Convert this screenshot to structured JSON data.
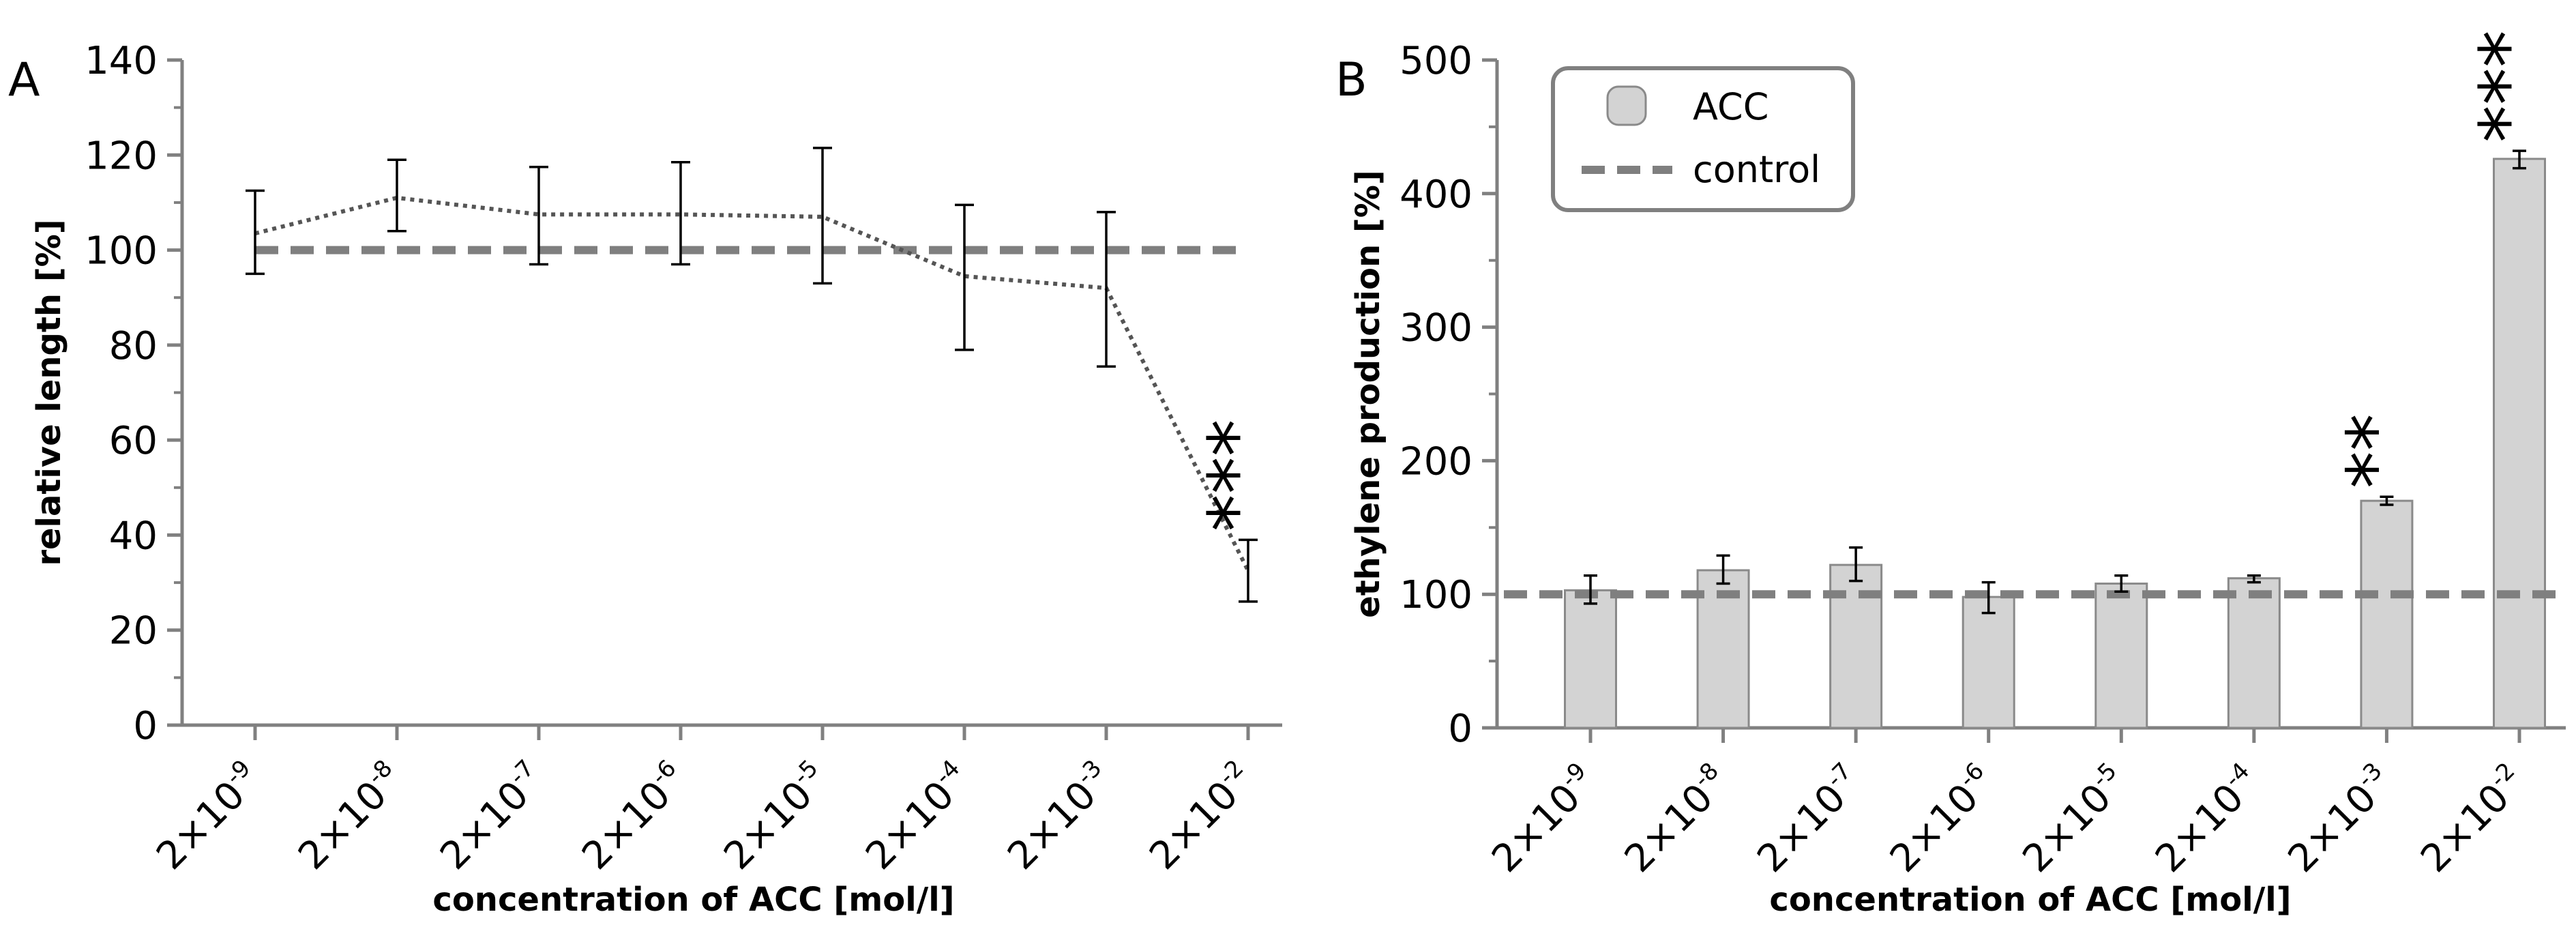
{
  "chart_data": [
    {
      "panel": "A",
      "type": "line",
      "xlabel": "concentration of ACC [mol/l]",
      "ylabel": "relative length [%]",
      "ylim": [
        0,
        140
      ],
      "y_ticks": [
        0,
        20,
        40,
        60,
        80,
        100,
        120,
        140
      ],
      "categories": [
        {
          "base": "2×10",
          "exp": "-9"
        },
        {
          "base": "2×10",
          "exp": "-8"
        },
        {
          "base": "2×10",
          "exp": "-7"
        },
        {
          "base": "2×10",
          "exp": "-6"
        },
        {
          "base": "2×10",
          "exp": "-5"
        },
        {
          "base": "2×10",
          "exp": "-4"
        },
        {
          "base": "2×10",
          "exp": "-3"
        },
        {
          "base": "2×10",
          "exp": "-2"
        }
      ],
      "series": [
        {
          "name": "ACC",
          "values": [
            103.5,
            111,
            107.5,
            107.5,
            107,
            94.5,
            92,
            32.5
          ],
          "err_low": [
            95,
            104,
            97,
            97,
            93,
            79,
            75.5,
            26
          ],
          "err_high": [
            112.5,
            119,
            117.5,
            118.5,
            121.5,
            109.5,
            108,
            39
          ]
        }
      ],
      "control": {
        "name": "control",
        "value": 100
      },
      "annotations": [
        {
          "category_index": 7,
          "text": "***"
        }
      ]
    },
    {
      "panel": "B",
      "type": "bar",
      "xlabel": "concentration of ACC [mol/l]",
      "ylabel": "ethylene production [%]",
      "ylim": [
        0,
        500
      ],
      "y_ticks": [
        0,
        100,
        200,
        300,
        400,
        500
      ],
      "categories": [
        {
          "base": "2×10",
          "exp": "-9"
        },
        {
          "base": "2×10",
          "exp": "-8"
        },
        {
          "base": "2×10",
          "exp": "-7"
        },
        {
          "base": "2×10",
          "exp": "-6"
        },
        {
          "base": "2×10",
          "exp": "-5"
        },
        {
          "base": "2×10",
          "exp": "-4"
        },
        {
          "base": "2×10",
          "exp": "-3"
        },
        {
          "base": "2×10",
          "exp": "-2"
        }
      ],
      "series": [
        {
          "name": "ACC",
          "values": [
            103,
            118,
            122,
            98,
            108,
            112,
            170,
            426
          ],
          "err_low": [
            93,
            108,
            110,
            86,
            102,
            109,
            167,
            419
          ],
          "err_high": [
            114,
            129,
            135,
            109,
            114,
            114,
            173,
            432
          ]
        }
      ],
      "control": {
        "name": "control",
        "value": 100
      },
      "legend": {
        "position": "top-left",
        "entries": [
          "ACC",
          "control"
        ]
      },
      "annotations": [
        {
          "category_index": 6,
          "text": "**"
        },
        {
          "category_index": 7,
          "text": "***"
        }
      ]
    }
  ],
  "colors": {
    "axis": "#808080",
    "bar_fill": "#d3d3d3",
    "bar_stroke": "#8a8a8a",
    "control_line": "#7f7f7f",
    "data_line": "#555555",
    "error_bar": "#000000",
    "text": "#000000"
  }
}
